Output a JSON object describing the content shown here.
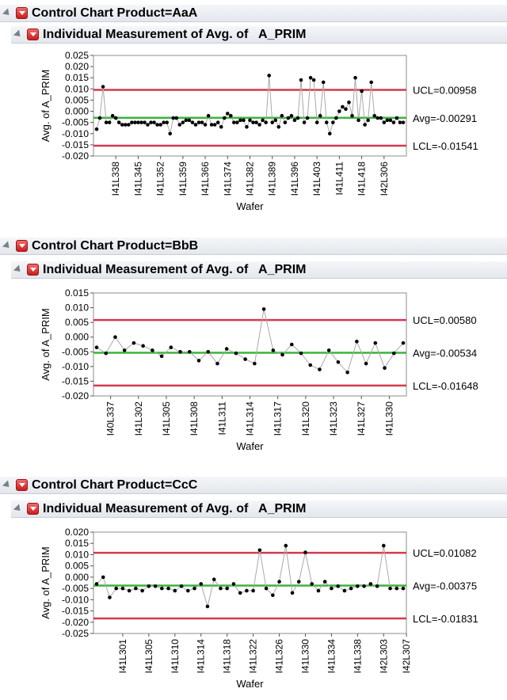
{
  "sections": [
    {
      "outline_title": "Control Chart Product=AaA",
      "chart_title": "Individual Measurement of Avg. of   A_PRIM",
      "chart_data": {
        "type": "line",
        "ylabel": "Avg. of   A_PRIM",
        "xlabel": "Wafer",
        "ylim": [
          -0.02,
          0.025
        ],
        "yticks": [
          "0.025",
          "0.020",
          "0.015",
          "0.010",
          "0.005",
          "0.000",
          "-0.005",
          "-0.010",
          "-0.015",
          "-0.020"
        ],
        "ytick_values": [
          0.025,
          0.02,
          0.015,
          0.01,
          0.005,
          0.0,
          -0.005,
          -0.01,
          -0.015,
          -0.02
        ],
        "x_tick_labels": [
          "I41L338",
          "I41L345",
          "I41L352",
          "I41L359",
          "I41L366",
          "I41L374",
          "I41L382",
          "I41L389",
          "I41L396",
          "I41L403",
          "I41L411",
          "I41L418",
          "I42L306"
        ],
        "x_tick_positions": [
          6,
          13,
          20,
          27,
          34,
          41,
          48,
          55,
          62,
          69,
          76,
          83,
          90
        ],
        "n_points": 97,
        "values": [
          -0.008,
          -0.003,
          0.011,
          -0.005,
          -0.005,
          -0.002,
          -0.003,
          -0.005,
          -0.006,
          -0.006,
          -0.006,
          -0.005,
          -0.005,
          -0.005,
          -0.005,
          -0.005,
          -0.006,
          -0.005,
          -0.005,
          -0.006,
          -0.006,
          -0.005,
          -0.005,
          -0.01,
          -0.003,
          -0.003,
          -0.006,
          -0.005,
          -0.004,
          -0.004,
          -0.005,
          -0.006,
          -0.005,
          -0.005,
          -0.006,
          -0.002,
          -0.006,
          -0.006,
          -0.005,
          -0.007,
          -0.003,
          -0.001,
          -0.002,
          -0.005,
          -0.005,
          -0.004,
          -0.004,
          -0.007,
          -0.004,
          -0.005,
          -0.005,
          -0.006,
          -0.004,
          -0.005,
          0.016,
          -0.005,
          -0.004,
          -0.007,
          -0.002,
          -0.005,
          -0.003,
          -0.002,
          -0.004,
          -0.003,
          0.014,
          -0.005,
          -0.003,
          0.015,
          0.014,
          -0.005,
          -0.002,
          0.013,
          -0.005,
          -0.01,
          -0.005,
          -0.003,
          0.0,
          0.002,
          0.001,
          0.004,
          -0.002,
          0.015,
          -0.004,
          0.009,
          -0.006,
          -0.004,
          0.013,
          -0.002,
          -0.003,
          -0.003,
          -0.005,
          -0.004,
          -0.004,
          -0.005,
          -0.003,
          -0.005,
          -0.005
        ],
        "ucl": 0.00958,
        "avg": -0.00291,
        "lcl": -0.01541,
        "ucl_label": "UCL=0.00958",
        "avg_label": "Avg=-0.00291",
        "lcl_label": "LCL=-0.01541"
      }
    },
    {
      "outline_title": "Control Chart Product=BbB",
      "chart_title": "Individual Measurement of Avg. of   A_PRIM",
      "chart_data": {
        "type": "line",
        "ylabel": "Avg. of   A_PRIM",
        "xlabel": "Wafer",
        "ylim": [
          -0.02,
          0.015
        ],
        "yticks": [
          "0.015",
          "0.010",
          "0.005",
          "0.000",
          "-0.005",
          "-0.010",
          "-0.015",
          "-0.020"
        ],
        "ytick_values": [
          0.015,
          0.01,
          0.005,
          0.0,
          -0.005,
          -0.01,
          -0.015,
          -0.02
        ],
        "x_tick_labels": [
          "I40L337",
          "I41L302",
          "I41L305",
          "I41L308",
          "I41L311",
          "I41L314",
          "I41L317",
          "I41L320",
          "I41L323",
          "I41L327",
          "I41L330"
        ],
        "x_tick_positions": [
          1.5,
          4.5,
          7.5,
          10.5,
          13.5,
          16.5,
          19.5,
          22.5,
          25.5,
          28.5,
          31.5
        ],
        "n_points": 34,
        "values": [
          -0.0035,
          -0.0055,
          0.0,
          -0.0045,
          -0.002,
          -0.003,
          -0.0045,
          -0.0065,
          -0.0035,
          -0.005,
          -0.005,
          -0.008,
          -0.005,
          -0.009,
          -0.004,
          -0.0055,
          -0.0075,
          -0.009,
          0.0095,
          -0.0045,
          -0.006,
          -0.0025,
          -0.0055,
          -0.0095,
          -0.011,
          -0.0045,
          -0.0085,
          -0.012,
          -0.0015,
          -0.009,
          -0.002,
          -0.0105,
          -0.0055,
          -0.002
        ],
        "ucl": 0.0058,
        "avg": -0.00534,
        "lcl": -0.01648,
        "ucl_label": "UCL=0.00580",
        "avg_label": "Avg=-0.00534",
        "lcl_label": "LCL=-0.01648"
      }
    },
    {
      "outline_title": "Control Chart Product=CcC",
      "chart_title": "Individual Measurement of Avg. of   A_PRIM",
      "chart_data": {
        "type": "line",
        "ylabel": "Avg. of   A_PRIM",
        "xlabel": "Wafer",
        "ylim": [
          -0.025,
          0.02
        ],
        "yticks": [
          "0.020",
          "0.015",
          "0.010",
          "0.005",
          "0.000",
          "-0.005",
          "-0.010",
          "-0.015",
          "-0.020",
          "-0.025"
        ],
        "ytick_values": [
          0.02,
          0.015,
          0.01,
          0.005,
          0.0,
          -0.005,
          -0.01,
          -0.015,
          -0.02,
          -0.025
        ],
        "x_tick_labels": [
          "I41L301",
          "I41L305",
          "I41L310",
          "I41L314",
          "I41L318",
          "I41L322",
          "I41L326",
          "I41L330",
          "I41L334",
          "I41L338",
          "I42L303",
          "I42L307"
        ],
        "x_tick_positions": [
          4,
          8,
          12,
          16,
          20,
          24,
          28,
          32,
          36,
          40,
          44,
          47.5
        ],
        "n_points": 48,
        "values": [
          -0.003,
          0.0,
          -0.009,
          -0.005,
          -0.005,
          -0.006,
          -0.005,
          -0.006,
          -0.004,
          -0.004,
          -0.005,
          -0.005,
          -0.006,
          -0.004,
          -0.006,
          -0.005,
          -0.003,
          -0.013,
          -0.001,
          -0.005,
          -0.005,
          -0.003,
          -0.007,
          -0.006,
          -0.006,
          0.012,
          -0.005,
          -0.008,
          -0.002,
          0.014,
          -0.007,
          -0.002,
          0.011,
          -0.003,
          -0.006,
          -0.002,
          -0.005,
          -0.004,
          -0.006,
          -0.005,
          -0.004,
          -0.004,
          -0.003,
          -0.004,
          0.014,
          -0.005,
          -0.005,
          -0.005
        ],
        "ucl": 0.01082,
        "avg": -0.00375,
        "lcl": -0.01831,
        "ucl_label": "UCL=0.01082",
        "avg_label": "Avg=-0.00375",
        "lcl_label": "LCL=-0.01831"
      }
    }
  ]
}
